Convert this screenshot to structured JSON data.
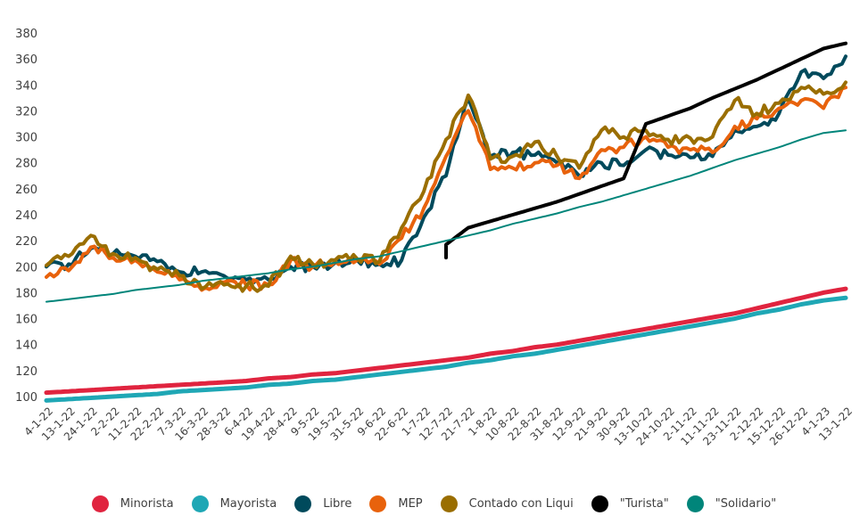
{
  "chart_data": {
    "type": "line",
    "title": "",
    "xlabel": "",
    "ylabel": "",
    "ylim": [
      100,
      380
    ],
    "yticks": [
      100,
      120,
      140,
      160,
      180,
      200,
      220,
      240,
      260,
      280,
      300,
      320,
      340,
      360,
      380
    ],
    "grid": false,
    "legend_position": "bottom",
    "categories": [
      "4-1-22",
      "13-1-22",
      "24-1-22",
      "2-2-22",
      "11-2-22",
      "22-2-22",
      "7-3-22",
      "16-3-22",
      "28-3-22",
      "6-4-22",
      "19-4-22",
      "28-4-22",
      "9-5-22",
      "19-5-22",
      "31-5-22",
      "9-6-22",
      "22-6-22",
      "1-7-22",
      "12-7-22",
      "21-7-22",
      "1-8-22",
      "10-8-22",
      "22-8-22",
      "31-8-22",
      "12-9-22",
      "21-9-22",
      "30-9-22",
      "13-10-22",
      "24-10-22",
      "2-11-22",
      "11-11-22",
      "23-11-22",
      "2-12-22",
      "15-12-22",
      "26-12-22",
      "4-1-23",
      "13-1-22"
    ],
    "series": [
      {
        "name": "Minorista",
        "color": "#e0243f",
        "width": 5,
        "values": [
          103,
          104,
          105,
          106,
          107,
          108,
          109,
          110,
          111,
          112,
          114,
          115,
          117,
          118,
          120,
          122,
          124,
          126,
          128,
          130,
          133,
          135,
          138,
          140,
          143,
          146,
          149,
          152,
          155,
          158,
          161,
          164,
          168,
          172,
          176,
          180,
          183
        ]
      },
      {
        "name": "Mayorista",
        "color": "#1fa7b5",
        "width": 5,
        "values": [
          97,
          98,
          99,
          100,
          101,
          102,
          104,
          105,
          106,
          107,
          109,
          110,
          112,
          113,
          115,
          117,
          119,
          121,
          123,
          126,
          128,
          131,
          133,
          136,
          139,
          142,
          145,
          148,
          151,
          154,
          157,
          160,
          164,
          167,
          171,
          174,
          176
        ]
      },
      {
        "name": "Libre",
        "color": "#004a5c",
        "width": 4,
        "values": [
          200,
          202,
          214,
          210,
          208,
          204,
          196,
          196,
          193,
          190,
          190,
          200,
          200,
          203,
          205,
          202,
          205,
          238,
          270,
          330,
          285,
          288,
          286,
          280,
          270,
          280,
          278,
          290,
          286,
          284,
          285,
          305,
          308,
          318,
          350,
          345,
          362
        ]
      },
      {
        "name": "MEP",
        "color": "#e8620c",
        "width": 4,
        "values": [
          192,
          197,
          215,
          207,
          205,
          196,
          190,
          182,
          188,
          186,
          186,
          205,
          200,
          204,
          205,
          202,
          222,
          245,
          285,
          320,
          275,
          276,
          280,
          278,
          268,
          290,
          292,
          300,
          292,
          290,
          288,
          308,
          314,
          322,
          328,
          322,
          338
        ]
      },
      {
        "name": "Contado con Liqui",
        "color": "#9a6e00",
        "width": 4,
        "values": [
          201,
          208,
          224,
          210,
          207,
          198,
          193,
          183,
          186,
          185,
          185,
          208,
          202,
          205,
          206,
          204,
          230,
          258,
          298,
          332,
          283,
          285,
          296,
          285,
          276,
          305,
          300,
          305,
          298,
          299,
          300,
          328,
          318,
          326,
          338,
          333,
          342
        ]
      },
      {
        "name": "\"Turista\"",
        "color": "#000000",
        "width": 4,
        "values": [
          null,
          null,
          null,
          null,
          null,
          null,
          null,
          null,
          null,
          null,
          null,
          null,
          null,
          null,
          null,
          null,
          null,
          null,
          217,
          230,
          235,
          240,
          245,
          250,
          256,
          262,
          268,
          310,
          316,
          322,
          330,
          337,
          344,
          352,
          360,
          368,
          372
        ]
      },
      {
        "name": "\"Solidario\"",
        "color": "#00857a",
        "width": 2,
        "values": [
          173,
          175,
          177,
          179,
          182,
          184,
          186,
          189,
          191,
          193,
          195,
          198,
          200,
          203,
          206,
          208,
          212,
          216,
          220,
          224,
          228,
          233,
          237,
          241,
          246,
          250,
          255,
          260,
          265,
          270,
          276,
          282,
          287,
          292,
          298,
          303,
          305
        ]
      }
    ]
  },
  "legend": {
    "items": [
      {
        "label": "Minorista",
        "color": "#e0243f"
      },
      {
        "label": "Mayorista",
        "color": "#1fa7b5"
      },
      {
        "label": "Libre",
        "color": "#004a5c"
      },
      {
        "label": "MEP",
        "color": "#e8620c"
      },
      {
        "label": "Contado con Liqui",
        "color": "#9a6e00"
      },
      {
        "label": "\"Turista\"",
        "color": "#000000"
      },
      {
        "label": "\"Solidario\"",
        "color": "#00857a"
      }
    ]
  }
}
